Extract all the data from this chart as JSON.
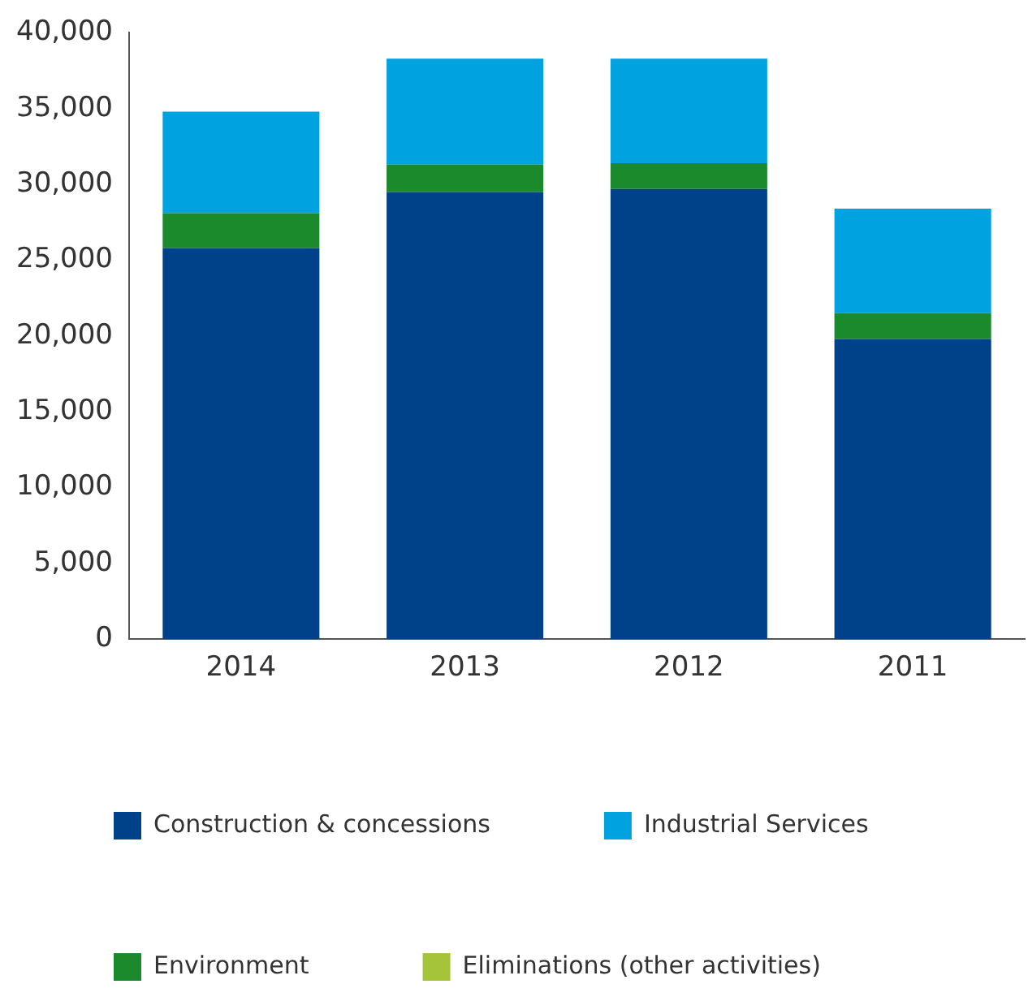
{
  "chart_data": {
    "type": "bar",
    "stacked": true,
    "categories": [
      "2014",
      "2013",
      "2012",
      "2011"
    ],
    "series": [
      {
        "name": "Construction & concessions",
        "color": "#00428a",
        "values": [
          25800,
          29500,
          29700,
          19800
        ]
      },
      {
        "name": "Environment",
        "color": "#1a8a2c",
        "values": [
          2300,
          1800,
          1700,
          1700
        ]
      },
      {
        "name": "Industrial Services",
        "color": "#00a3df",
        "values": [
          6700,
          7000,
          6900,
          6900
        ]
      },
      {
        "name": "Eliminations (other activities)",
        "color": "#a5c43a",
        "values": [
          null,
          null,
          null,
          null
        ]
      }
    ],
    "ylim": [
      0,
      40000
    ],
    "yticks": [
      {
        "value": 0,
        "label": "0"
      },
      {
        "value": 5000,
        "label": "5,000"
      },
      {
        "value": 10000,
        "label": "10,000"
      },
      {
        "value": 15000,
        "label": "15,000"
      },
      {
        "value": 20000,
        "label": "20,000"
      },
      {
        "value": 25000,
        "label": "25,000"
      },
      {
        "value": 30000,
        "label": "30,000"
      },
      {
        "value": 35000,
        "label": "35,000"
      },
      {
        "value": 40000,
        "label": "40,000"
      }
    ],
    "grid": false,
    "legend": "bottom"
  }
}
